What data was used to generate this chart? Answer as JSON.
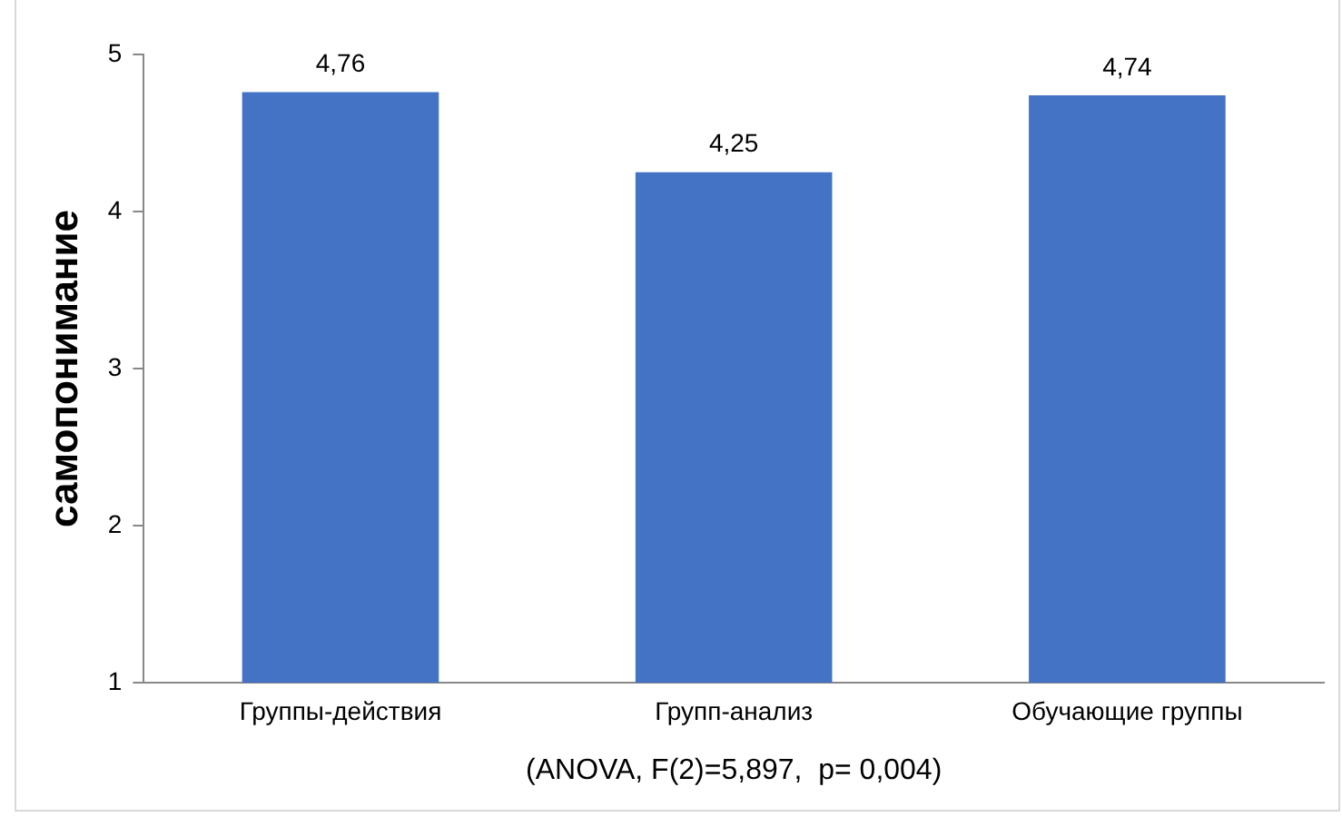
{
  "chart_data": {
    "type": "bar",
    "ylabel": "самопонимание",
    "xlabel": "(ANOVA, F(2)=5,897,  p= 0,004)",
    "categories": [
      "Группы-действия",
      "Групп-анализ",
      "Обучающие группы"
    ],
    "values": [
      4.76,
      4.25,
      4.74
    ],
    "value_labels": [
      "4,76",
      "4,25",
      "4,74"
    ],
    "color": "#4472c4",
    "ylim": [
      1,
      5
    ],
    "yticks": [
      1,
      2,
      3,
      4,
      5
    ],
    "grid": false,
    "legend": false
  }
}
